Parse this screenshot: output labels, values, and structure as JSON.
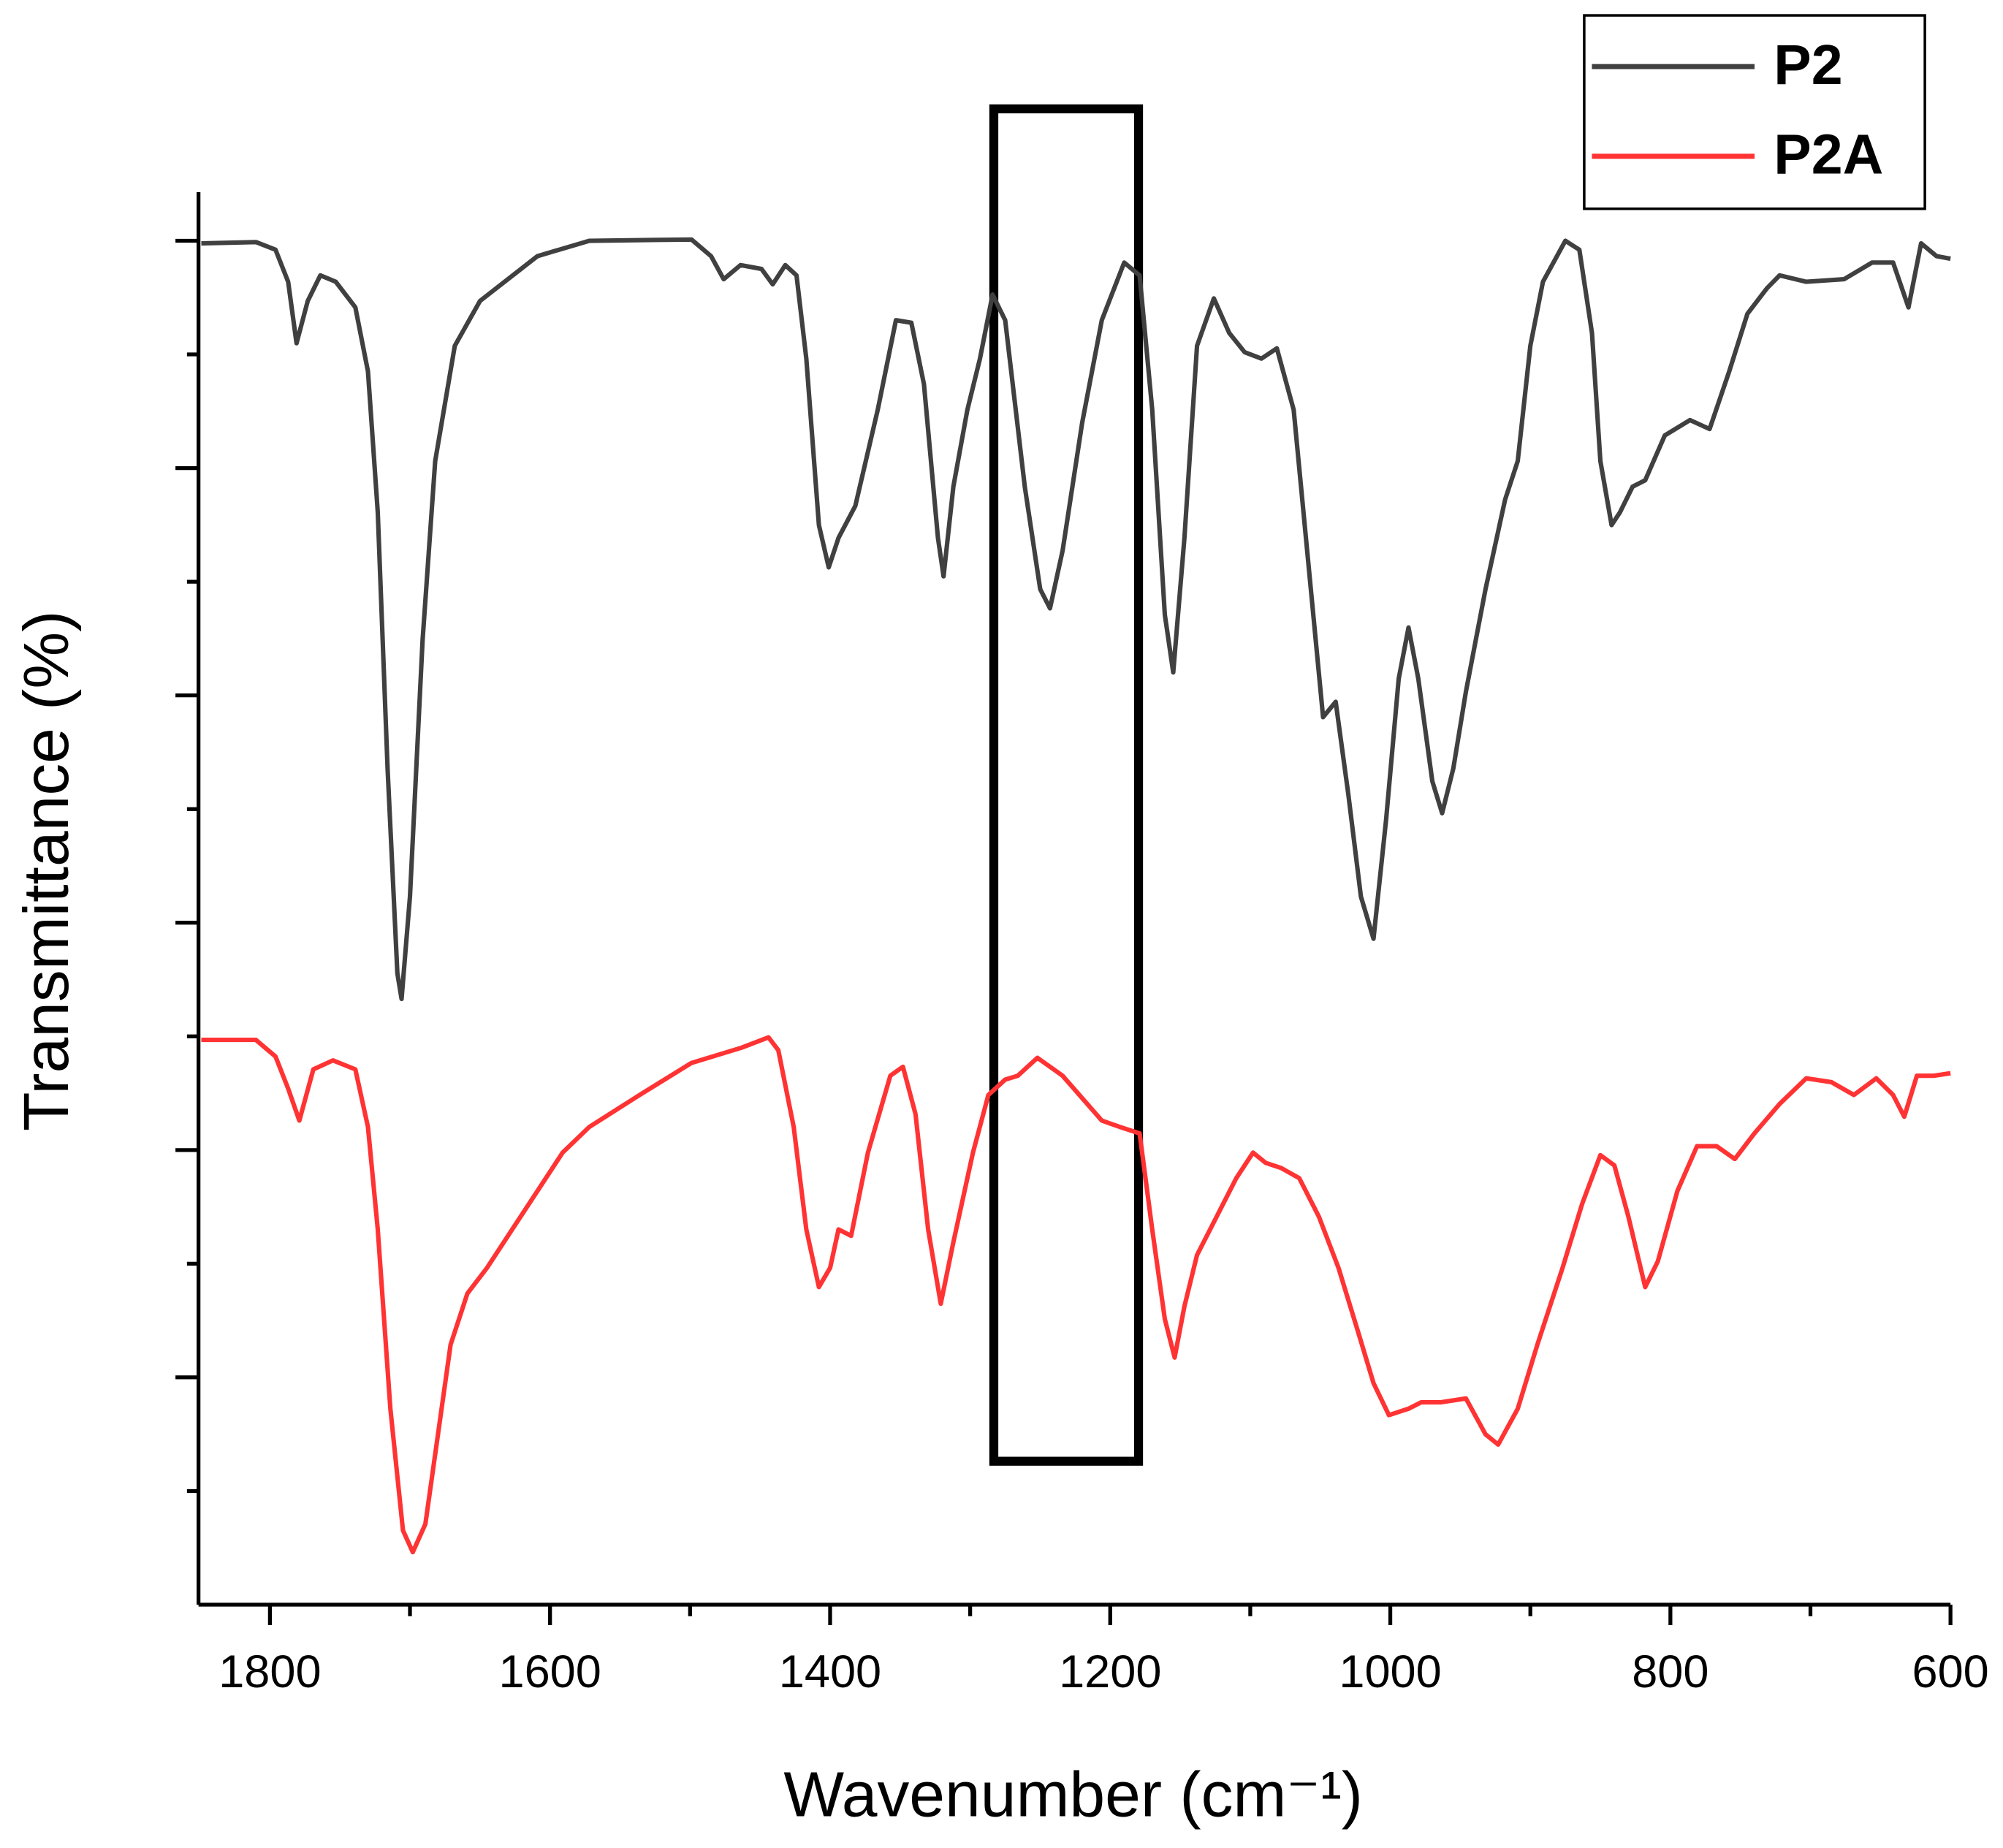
{
  "chart_data": {
    "type": "line",
    "x_label": "Wavenumber (cm⁻¹)",
    "y_label": "Transmittance (%)",
    "xlim": [
      1851,
      600
    ],
    "xticks": [
      1800,
      1600,
      1400,
      1200,
      1000,
      800,
      600
    ],
    "xminorticks": [
      1700,
      1500,
      1300,
      1100,
      900,
      700
    ],
    "ylim": [
      0,
      1103
    ],
    "yticks": [
      177.5,
      355,
      532.5,
      710,
      887.5,
      1065
    ],
    "yminorticks": [
      88.75,
      266.25,
      443.75,
      621.25,
      798.75,
      976.25
    ],
    "legend": "upper right",
    "series": [
      {
        "name": "P2",
        "color": "#404040",
        "x": [
          1849,
          1810,
          1796,
          1787,
          1781,
          1773,
          1764,
          1753,
          1739,
          1730,
          1723,
          1716,
          1709,
          1706,
          1700,
          1691,
          1682,
          1668,
          1650,
          1609,
          1572,
          1499,
          1485,
          1476,
          1464,
          1449,
          1441,
          1432,
          1424,
          1417,
          1408,
          1401,
          1394,
          1382,
          1366,
          1353,
          1342,
          1333,
          1323,
          1319,
          1312,
          1302,
          1293,
          1284,
          1275,
          1261,
          1250,
          1243,
          1234,
          1220,
          1206,
          1190,
          1179,
          1170,
          1161,
          1155,
          1147,
          1138,
          1126,
          1115,
          1104,
          1092,
          1081,
          1069,
          1055,
          1048,
          1039,
          1030,
          1021,
          1012,
          1003,
          994,
          987,
          980,
          970,
          963,
          955,
          946,
          932,
          918,
          909,
          900,
          891,
          875,
          865,
          856,
          850,
          842,
          836,
          827,
          818,
          804,
          786,
          772,
          758,
          745,
          731,
          722,
          703,
          676,
          656,
          641,
          630,
          621,
          610,
          600
        ],
        "values": [
          1063,
          1064,
          1058,
          1033,
          985,
          1018,
          1038,
          1033,
          1013,
          963,
          853,
          653,
          493,
          473,
          553,
          753,
          893,
          983,
          1018,
          1053,
          1065,
          1066,
          1053,
          1035,
          1046,
          1043,
          1031,
          1046,
          1038,
          973,
          843,
          810,
          833,
          858,
          933,
          1003,
          1001,
          953,
          833,
          803,
          873,
          933,
          973,
          1023,
          1003,
          873,
          793,
          778,
          823,
          923,
          1003,
          1048,
          1038,
          933,
          773,
          728,
          833,
          983,
          1020,
          993,
          978,
          973,
          981,
          933,
          773,
          693,
          705,
          633,
          553,
          520,
          613,
          723,
          763,
          723,
          643,
          618,
          653,
          713,
          793,
          863,
          893,
          983,
          1033,
          1065,
          1058,
          993,
          893,
          843,
          853,
          873,
          878,
          913,
          925,
          918,
          963,
          1008,
          1028,
          1038,
          1033,
          1035,
          1048,
          1048,
          1013,
          1063,
          1053,
          1051
        ]
      },
      {
        "name": "P2A",
        "color": "#ff3333",
        "x": [
          1849,
          1810,
          1796,
          1787,
          1779,
          1769,
          1755,
          1739,
          1730,
          1723,
          1714,
          1705,
          1698,
          1689,
          1680,
          1671,
          1659,
          1645,
          1627,
          1609,
          1591,
          1572,
          1536,
          1499,
          1463,
          1444,
          1437,
          1426,
          1417,
          1408,
          1400,
          1394,
          1385,
          1373,
          1357,
          1348,
          1339,
          1330,
          1321,
          1312,
          1298,
          1287,
          1275,
          1266,
          1252,
          1234,
          1206,
          1193,
          1179,
          1170,
          1161,
          1154,
          1147,
          1138,
          1124,
          1110,
          1098,
          1089,
          1078,
          1065,
          1051,
          1037,
          1023,
          1012,
          1001,
          987,
          978,
          964,
          946,
          932,
          923,
          909,
          895,
          877,
          863,
          850,
          840,
          830,
          818,
          809,
          795,
          781,
          767,
          754,
          740,
          722,
          703,
          685,
          669,
          653,
          641,
          633,
          624,
          612,
          600
        ],
        "values": [
          441,
          441,
          428,
          403,
          378,
          418,
          425,
          418,
          373,
          293,
          153,
          58,
          41,
          63,
          133,
          203,
          243,
          263,
          293,
          323,
          353,
          373,
          398,
          423,
          435,
          443,
          433,
          373,
          293,
          248,
          263,
          293,
          288,
          353,
          413,
          420,
          383,
          293,
          235,
          283,
          353,
          398,
          410,
          413,
          427,
          413,
          378,
          373,
          368,
          293,
          223,
          193,
          233,
          273,
          303,
          333,
          353,
          345,
          341,
          333,
          303,
          263,
          213,
          173,
          148,
          153,
          158,
          158,
          161,
          133,
          125,
          153,
          203,
          263,
          313,
          351,
          343,
          303,
          248,
          268,
          323,
          358,
          358,
          348,
          368,
          391,
          411,
          408,
          398,
          411,
          398,
          381,
          413,
          413,
          415
        ]
      }
    ]
  }
}
